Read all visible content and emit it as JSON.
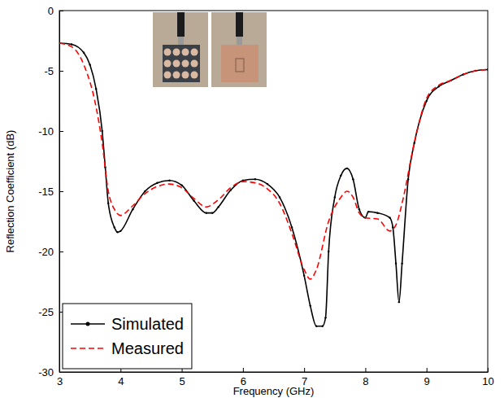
{
  "chart_data": {
    "type": "line",
    "x_label": "Frequency (GHz)",
    "y_label": "Reflection Coefficient (dB)",
    "xlim": [
      3,
      10
    ],
    "xticks": [
      3,
      4,
      5,
      6,
      7,
      8,
      9,
      10
    ],
    "ylim": [
      -30,
      0
    ],
    "yticks": [
      -30,
      -25,
      -20,
      -15,
      -10,
      -5,
      0
    ],
    "grid": false,
    "legend": "lower left",
    "series": [
      {
        "name": "Simulated",
        "color": "#000000",
        "line_style": "solid",
        "marker": "circle",
        "x": [
          3.0,
          3.2,
          3.4,
          3.5,
          3.6,
          3.7,
          3.75,
          3.8,
          3.9,
          3.95,
          4.0,
          4.2,
          4.4,
          4.6,
          4.8,
          5.0,
          5.2,
          5.4,
          5.5,
          5.6,
          5.8,
          6.0,
          6.2,
          6.4,
          6.6,
          6.8,
          7.0,
          7.1,
          7.2,
          7.3,
          7.35,
          7.4,
          7.5,
          7.6,
          7.7,
          7.8,
          7.9,
          8.0,
          8.05,
          8.2,
          8.4,
          8.45,
          8.5,
          8.55,
          8.6,
          8.7,
          8.8,
          9.0,
          9.2,
          9.4,
          9.6,
          9.8,
          10.0
        ],
        "values": [
          -2.7,
          -2.8,
          -3.5,
          -4.5,
          -6.5,
          -10,
          -13,
          -16,
          -18,
          -18.4,
          -18.3,
          -16.5,
          -15,
          -14.3,
          -14.1,
          -14.5,
          -15.8,
          -16.8,
          -16.8,
          -16.3,
          -14.9,
          -14.1,
          -14,
          -14.4,
          -15.5,
          -18,
          -22,
          -24.5,
          -26.2,
          -26.2,
          -25.5,
          -20,
          -15.5,
          -13.7,
          -13.1,
          -14,
          -16.5,
          -17.2,
          -16.7,
          -16.8,
          -17.2,
          -18,
          -21,
          -24.2,
          -21,
          -14,
          -11,
          -7.5,
          -6.3,
          -5.8,
          -5.3,
          -5,
          -4.9
        ]
      },
      {
        "name": "Measured",
        "color": "#ff0000",
        "line_style": "dashed",
        "x": [
          3.0,
          3.2,
          3.4,
          3.6,
          3.7,
          3.8,
          3.9,
          4.0,
          4.2,
          4.4,
          4.6,
          4.8,
          5.0,
          5.2,
          5.4,
          5.6,
          5.8,
          6.0,
          6.2,
          6.4,
          6.6,
          6.8,
          7.0,
          7.1,
          7.2,
          7.4,
          7.6,
          7.7,
          7.8,
          7.9,
          8.0,
          8.2,
          8.4,
          8.5,
          8.6,
          8.8,
          9.0,
          9.2,
          9.4,
          9.6,
          9.8,
          10.0
        ],
        "values": [
          -2.7,
          -3,
          -4.5,
          -8,
          -11,
          -15,
          -16.5,
          -17,
          -16.2,
          -15.2,
          -14.6,
          -14.4,
          -14.7,
          -15.6,
          -16.3,
          -15.7,
          -14.7,
          -14.2,
          -14.3,
          -14.8,
          -16,
          -18.5,
          -21.5,
          -22.3,
          -21.5,
          -17.5,
          -15.5,
          -15,
          -15.5,
          -16.8,
          -17.2,
          -17.3,
          -18.3,
          -17.8,
          -16,
          -11,
          -7.3,
          -6.2,
          -5.8,
          -5.3,
          -5,
          -4.9
        ]
      }
    ]
  }
}
